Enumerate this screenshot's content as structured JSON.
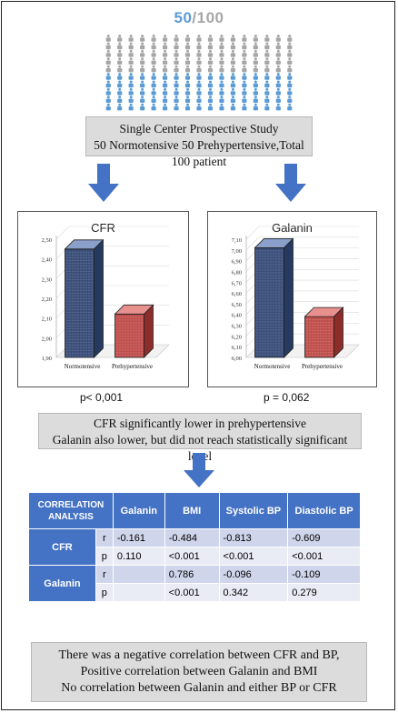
{
  "title": {
    "part": "50",
    "total": "/100"
  },
  "people": {
    "rows": 10,
    "per_row": 17,
    "highlighted_rows": 5,
    "highlight_color": "#5b9bd5",
    "base_color": "#a6a6a6"
  },
  "study": {
    "line1": "Single  Center Prospective Study",
    "line2": "50 Normotensive 50 Prehypertensive,Total 100 patient"
  },
  "charts": {
    "cfr": {
      "title": "CFR",
      "ytick_labels": [
        "2,50",
        "2,40",
        "2,30",
        "2,20",
        "2,10",
        "2,00",
        "1,90"
      ],
      "categories": [
        "Normotensive",
        "Prehypertensive"
      ],
      "pvalue": "p< 0,001"
    },
    "galanin": {
      "title": "Galanin",
      "ytick_labels": [
        "7,10",
        "7,00",
        "6,90",
        "6,80",
        "6,70",
        "6,60",
        "6,50",
        "6,40",
        "6,30",
        "6,20",
        "6,10",
        "6,00"
      ],
      "categories": [
        "Normotensive",
        "Prehypertensive"
      ],
      "pvalue": "p = 0,062"
    }
  },
  "chart_data": [
    {
      "type": "bar",
      "title": "CFR",
      "categories": [
        "Normotensive",
        "Prehypertensive"
      ],
      "values": [
        2.45,
        2.12
      ],
      "ylim": [
        1.9,
        2.5
      ],
      "colors": [
        "#3b4f7a",
        "#c0504d"
      ]
    },
    {
      "type": "bar",
      "title": "Galanin",
      "categories": [
        "Normotensive",
        "Prehypertensive"
      ],
      "values": [
        7.02,
        6.38
      ],
      "ylim": [
        6.0,
        7.1
      ],
      "colors": [
        "#3b4f7a",
        "#c0504d"
      ]
    }
  ],
  "findings": {
    "line1": "CFR significantly lower in prehypertensive",
    "line2": "Galanin also lower, but did not reach statistically significant level"
  },
  "table": {
    "header": [
      "CORRELATION ANALYSIS",
      "Galanin",
      "BMI",
      "Systolic BP",
      "Diastolic BP"
    ],
    "groups": [
      {
        "name": "CFR",
        "rows": [
          {
            "stat": "r",
            "cells": [
              "-0.161",
              "-0.484",
              "-0.813",
              "-0.609"
            ]
          },
          {
            "stat": "p",
            "cells": [
              "0.110",
              "<0.001",
              "<0.001",
              "<0.001"
            ]
          }
        ]
      },
      {
        "name": "Galanin",
        "rows": [
          {
            "stat": "r",
            "cells": [
              "",
              "0.786",
              "-0.096",
              "-0.109"
            ]
          },
          {
            "stat": "p",
            "cells": [
              "",
              "<0.001",
              "0.342",
              "0.279"
            ]
          }
        ]
      }
    ]
  },
  "conclusion": {
    "line1": "There was a negative correlation between CFR and BP,",
    "line2": "Positive correlation between Galanin and BMI",
    "line3": "No correlation between Galanin and either BP  or CFR"
  }
}
